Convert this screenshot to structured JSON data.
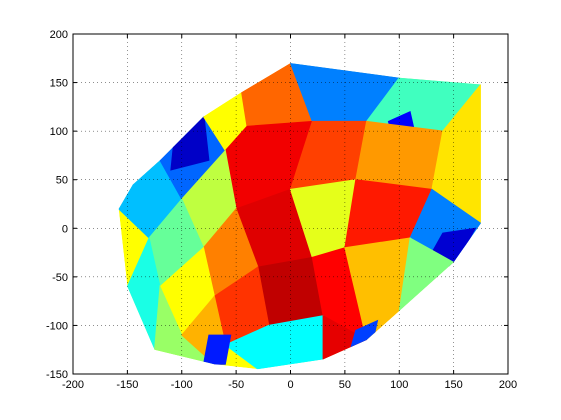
{
  "chart_data": {
    "type": "heatmap",
    "title": "",
    "xlabel": "",
    "ylabel": "",
    "xlim": [
      -200,
      200
    ],
    "ylim": [
      -150,
      200
    ],
    "grid": true,
    "legend": "none",
    "x_ticks": [
      -200,
      -150,
      -100,
      -50,
      0,
      50,
      100,
      150,
      200
    ],
    "y_ticks": [
      -150,
      -100,
      -50,
      0,
      50,
      100,
      150,
      200
    ],
    "x_tick_labels": [
      "-200",
      "-150",
      "-100",
      "-50",
      "0",
      "50",
      "100",
      "150",
      "200"
    ],
    "y_tick_labels": [
      "-150",
      "-100",
      "-50",
      "0",
      "50",
      "100",
      "150",
      "200"
    ],
    "colormap": "jet",
    "colormap_colors": [
      "#00008f",
      "#0000ff",
      "#00ffff",
      "#ffff00",
      "#ff0000",
      "#800000"
    ],
    "region_boundary": [
      [
        -158,
        20
      ],
      [
        -145,
        45
      ],
      [
        -120,
        70
      ],
      [
        -80,
        115
      ],
      [
        -45,
        140
      ],
      [
        0,
        170
      ],
      [
        100,
        155
      ],
      [
        175,
        148
      ],
      [
        175,
        5
      ],
      [
        150,
        -35
      ],
      [
        100,
        -85
      ],
      [
        70,
        -115
      ],
      [
        30,
        -135
      ],
      [
        -30,
        -145
      ],
      [
        -70,
        -140
      ],
      [
        -125,
        -125
      ],
      [
        -150,
        -60
      ]
    ],
    "value_range": [
      0,
      1
    ],
    "surface_patches": [
      {
        "polygon": [
          [
            -158,
            20
          ],
          [
            -145,
            45
          ],
          [
            -120,
            70
          ],
          [
            -100,
            30
          ],
          [
            -130,
            -10
          ]
        ],
        "value": 0.35
      },
      {
        "polygon": [
          [
            -120,
            70
          ],
          [
            -80,
            115
          ],
          [
            -60,
            80
          ],
          [
            -100,
            30
          ]
        ],
        "value": 0.28
      },
      {
        "polygon": [
          [
            -105,
            115
          ],
          [
            -80,
            120
          ],
          [
            -75,
            70
          ],
          [
            -110,
            60
          ]
        ],
        "value": 0.1
      },
      {
        "polygon": [
          [
            -80,
            115
          ],
          [
            -45,
            140
          ],
          [
            -40,
            105
          ],
          [
            -60,
            80
          ]
        ],
        "value": 0.6
      },
      {
        "polygon": [
          [
            -45,
            140
          ],
          [
            0,
            170
          ],
          [
            20,
            110
          ],
          [
            -40,
            105
          ]
        ],
        "value": 0.72
      },
      {
        "polygon": [
          [
            0,
            170
          ],
          [
            100,
            155
          ],
          [
            70,
            110
          ],
          [
            20,
            110
          ]
        ],
        "value": 0.3
      },
      {
        "polygon": [
          [
            100,
            155
          ],
          [
            175,
            148
          ],
          [
            140,
            100
          ],
          [
            70,
            110
          ]
        ],
        "value": 0.45
      },
      {
        "polygon": [
          [
            90,
            110
          ],
          [
            110,
            120
          ],
          [
            115,
            95
          ],
          [
            95,
            90
          ]
        ],
        "value": 0.2
      },
      {
        "polygon": [
          [
            -60,
            80
          ],
          [
            -40,
            105
          ],
          [
            20,
            110
          ],
          [
            0,
            40
          ],
          [
            -50,
            20
          ]
        ],
        "value": 0.82
      },
      {
        "polygon": [
          [
            20,
            110
          ],
          [
            70,
            110
          ],
          [
            60,
            50
          ],
          [
            0,
            40
          ]
        ],
        "value": 0.75
      },
      {
        "polygon": [
          [
            70,
            110
          ],
          [
            140,
            100
          ],
          [
            130,
            40
          ],
          [
            60,
            50
          ]
        ],
        "value": 0.68
      },
      {
        "polygon": [
          [
            140,
            100
          ],
          [
            175,
            148
          ],
          [
            175,
            5
          ],
          [
            130,
            40
          ]
        ],
        "value": 0.62
      },
      {
        "polygon": [
          [
            -100,
            30
          ],
          [
            -60,
            80
          ],
          [
            -50,
            20
          ],
          [
            -80,
            -20
          ]
        ],
        "value": 0.55
      },
      {
        "polygon": [
          [
            -130,
            -10
          ],
          [
            -100,
            30
          ],
          [
            -80,
            -20
          ],
          [
            -120,
            -60
          ]
        ],
        "value": 0.48
      },
      {
        "polygon": [
          [
            -150,
            -60
          ],
          [
            -130,
            -10
          ],
          [
            -120,
            -60
          ],
          [
            -125,
            -125
          ]
        ],
        "value": 0.42
      },
      {
        "polygon": [
          [
            -50,
            20
          ],
          [
            0,
            40
          ],
          [
            20,
            -30
          ],
          [
            -30,
            -40
          ]
        ],
        "value": 0.85
      },
      {
        "polygon": [
          [
            0,
            40
          ],
          [
            60,
            50
          ],
          [
            50,
            -20
          ],
          [
            20,
            -30
          ]
        ],
        "value": 0.58
      },
      {
        "polygon": [
          [
            60,
            50
          ],
          [
            130,
            40
          ],
          [
            110,
            -10
          ],
          [
            50,
            -20
          ]
        ],
        "value": 0.78
      },
      {
        "polygon": [
          [
            130,
            40
          ],
          [
            175,
            5
          ],
          [
            150,
            -35
          ],
          [
            110,
            -10
          ]
        ],
        "value": 0.3
      },
      {
        "polygon": [
          [
            140,
            -5
          ],
          [
            170,
            0
          ],
          [
            150,
            -40
          ],
          [
            125,
            -35
          ]
        ],
        "value": 0.12
      },
      {
        "polygon": [
          [
            -80,
            -20
          ],
          [
            -50,
            20
          ],
          [
            -30,
            -40
          ],
          [
            -70,
            -70
          ]
        ],
        "value": 0.7
      },
      {
        "polygon": [
          [
            -120,
            -60
          ],
          [
            -80,
            -20
          ],
          [
            -70,
            -70
          ],
          [
            -100,
            -110
          ]
        ],
        "value": 0.6
      },
      {
        "polygon": [
          [
            -125,
            -125
          ],
          [
            -120,
            -60
          ],
          [
            -100,
            -110
          ],
          [
            -70,
            -140
          ]
        ],
        "value": 0.52
      },
      {
        "polygon": [
          [
            -30,
            -40
          ],
          [
            20,
            -30
          ],
          [
            30,
            -90
          ],
          [
            -20,
            -100
          ]
        ],
        "value": 0.9
      },
      {
        "polygon": [
          [
            20,
            -30
          ],
          [
            50,
            -20
          ],
          [
            70,
            -115
          ],
          [
            30,
            -90
          ]
        ],
        "value": 0.8
      },
      {
        "polygon": [
          [
            50,
            -20
          ],
          [
            110,
            -10
          ],
          [
            100,
            -85
          ],
          [
            70,
            -115
          ]
        ],
        "value": 0.65
      },
      {
        "polygon": [
          [
            110,
            -10
          ],
          [
            150,
            -35
          ],
          [
            100,
            -85
          ]
        ],
        "value": 0.5
      },
      {
        "polygon": [
          [
            -70,
            -70
          ],
          [
            -30,
            -40
          ],
          [
            -20,
            -100
          ],
          [
            -60,
            -120
          ]
        ],
        "value": 0.76
      },
      {
        "polygon": [
          [
            -100,
            -110
          ],
          [
            -70,
            -70
          ],
          [
            -60,
            -120
          ],
          [
            -70,
            -140
          ]
        ],
        "value": 0.66
      },
      {
        "polygon": [
          [
            -60,
            -120
          ],
          [
            -20,
            -100
          ],
          [
            30,
            -90
          ],
          [
            30,
            -135
          ],
          [
            -30,
            -145
          ]
        ],
        "value": 0.4
      },
      {
        "polygon": [
          [
            -75,
            -110
          ],
          [
            -55,
            -110
          ],
          [
            -60,
            -140
          ],
          [
            -80,
            -140
          ]
        ],
        "value": 0.22
      },
      {
        "polygon": [
          [
            30,
            -90
          ],
          [
            70,
            -115
          ],
          [
            30,
            -135
          ]
        ],
        "value": 0.84
      },
      {
        "polygon": [
          [
            60,
            -105
          ],
          [
            80,
            -95
          ],
          [
            75,
            -120
          ],
          [
            55,
            -125
          ]
        ],
        "value": 0.25
      }
    ]
  }
}
